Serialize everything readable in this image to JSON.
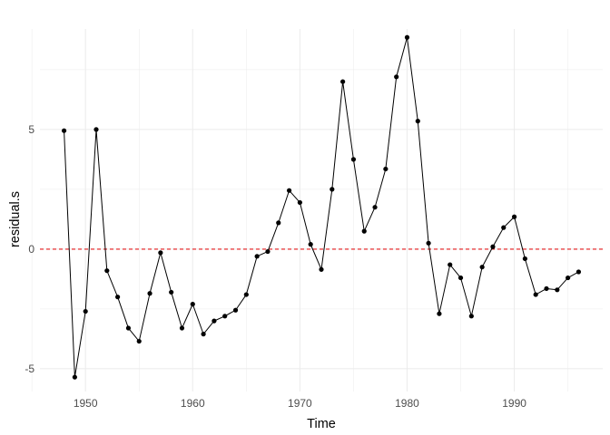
{
  "chart_data": {
    "type": "line",
    "title": "",
    "xlabel": "Time",
    "ylabel": "residual.s",
    "xlim": [
      1945.75,
      1998.25
    ],
    "ylim": [
      -5.95,
      9.2
    ],
    "x_ticks": [
      1950,
      1960,
      1970,
      1980,
      1990
    ],
    "x_tick_labels": [
      "1950",
      "1960",
      "1970",
      "1980",
      "1990"
    ],
    "x_minor_ticks": [
      1945,
      1955,
      1965,
      1975,
      1985,
      1995
    ],
    "y_ticks": [
      -5,
      0,
      5
    ],
    "y_tick_labels": [
      "-5",
      "0",
      "5"
    ],
    "y_minor_ticks": [
      -2.5,
      2.5,
      7.5
    ],
    "grid": true,
    "reference_line": {
      "y": 0,
      "color": "#e41a1c",
      "style": "dashed"
    },
    "colors": {
      "line": "#000000",
      "points": "#000000",
      "grid": "#ebebeb"
    },
    "series": [
      {
        "name": "residual.s",
        "x": [
          1948,
          1949,
          1950,
          1951,
          1952,
          1953,
          1954,
          1955,
          1956,
          1957,
          1958,
          1959,
          1960,
          1961,
          1962,
          1963,
          1964,
          1965,
          1966,
          1967,
          1968,
          1969,
          1970,
          1971,
          1972,
          1973,
          1974,
          1975,
          1976,
          1977,
          1978,
          1979,
          1980,
          1981,
          1982,
          1983,
          1984,
          1985,
          1986,
          1987,
          1988,
          1989,
          1990,
          1991,
          1992,
          1993,
          1994,
          1995,
          1996
        ],
        "values": [
          4.95,
          -5.35,
          -2.6,
          5.0,
          -0.9,
          -2.0,
          -3.3,
          -3.85,
          -1.85,
          -0.15,
          -1.8,
          -3.3,
          -2.3,
          -3.55,
          -3.0,
          -2.8,
          -2.55,
          -1.9,
          -0.3,
          -0.1,
          1.1,
          2.45,
          1.95,
          0.2,
          -0.85,
          2.5,
          7.0,
          3.75,
          0.75,
          1.75,
          3.35,
          7.2,
          8.85,
          5.35,
          0.25,
          -2.7,
          -0.65,
          -1.2,
          -2.8,
          -0.75,
          0.1,
          0.9,
          1.35,
          -0.4,
          -1.9,
          -1.65,
          -1.7,
          -1.2,
          -0.95
        ]
      }
    ]
  }
}
